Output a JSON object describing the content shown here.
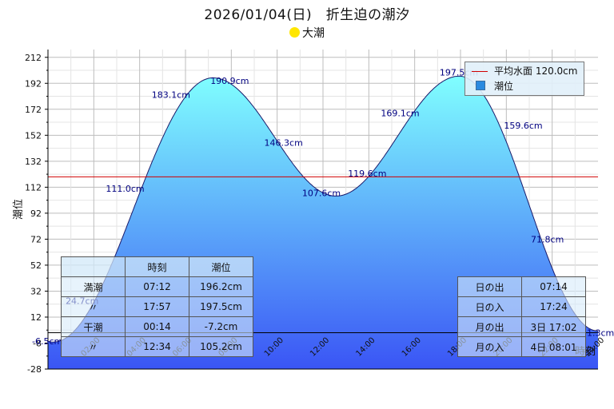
{
  "title": "2026/01/04(日)　折生迫の潮汐",
  "tide_type": "大潮",
  "legend": {
    "mean_level": "平均水面 120.0cm",
    "tide": "潮位"
  },
  "tide_table": {
    "headers": [
      "",
      "時刻",
      "潮位"
    ],
    "rows": [
      [
        "満潮",
        "07:12",
        "196.2cm"
      ],
      [
        "〃",
        "17:57",
        "197.5cm"
      ],
      [
        "干潮",
        "00:14",
        "-7.2cm"
      ],
      [
        "〃",
        "12:34",
        "105.2cm"
      ]
    ]
  },
  "sun_moon_table": [
    [
      "日の出",
      "07:14"
    ],
    [
      "日の入",
      "17:24"
    ],
    [
      "月の出",
      "3日 17:02"
    ],
    [
      "月の入",
      "4日 08:01"
    ]
  ],
  "colors": {
    "fill_top": "#80ffff",
    "fill_bottom": "#3a55f5",
    "mean_line": "#d00000",
    "curve": "#1a1a6a",
    "label": "#000080"
  },
  "chart_data": {
    "type": "area",
    "title": "2026/01/04(日)　折生迫の潮汐",
    "xlabel": "時刻",
    "ylabel": "潮位",
    "xlim": [
      0,
      24
    ],
    "ylim": [
      -28,
      218
    ],
    "y_ticks": [
      -28,
      -8,
      12,
      32,
      52,
      72,
      92,
      112,
      132,
      152,
      172,
      192,
      212
    ],
    "x_tick_labels": [
      "02:00",
      "04:00",
      "06:00",
      "08:00",
      "10:00",
      "12:00",
      "14:00",
      "16:00",
      "18:00",
      "20:00",
      "22:00",
      "24:00"
    ],
    "mean_level": 120.0,
    "extrema": [
      {
        "t": 0.233,
        "v": -7.2
      },
      {
        "t": 7.2,
        "v": 196.2
      },
      {
        "t": 12.567,
        "v": 105.2
      },
      {
        "t": 17.95,
        "v": 197.5
      }
    ],
    "end_level": 1.3,
    "point_labels": [
      {
        "t": 0,
        "v": -6.5,
        "text": "-6.5cm"
      },
      {
        "t": 2,
        "v": 24.7,
        "text": "24.7cm"
      },
      {
        "t": 4,
        "v": 111.0,
        "text": "111.0cm"
      },
      {
        "t": 6,
        "v": 183.1,
        "text": "183.1cm"
      },
      {
        "t": 8,
        "v": 190.9,
        "text": "190.9cm"
      },
      {
        "t": 10,
        "v": 146.3,
        "text": "146.3cm"
      },
      {
        "t": 12,
        "v": 107.6,
        "text": "107.6cm"
      },
      {
        "t": 14,
        "v": 119.6,
        "text": "119.6cm"
      },
      {
        "t": 16,
        "v": 169.1,
        "text": "169.1cm"
      },
      {
        "t": 18,
        "v": 197.5,
        "text": "197.5cm"
      },
      {
        "t": 20,
        "v": 159.6,
        "text": "159.6cm"
      },
      {
        "t": 22,
        "v": 71.8,
        "text": "71.8cm"
      },
      {
        "t": 24,
        "v": 1.3,
        "text": "1.3cm"
      }
    ]
  }
}
